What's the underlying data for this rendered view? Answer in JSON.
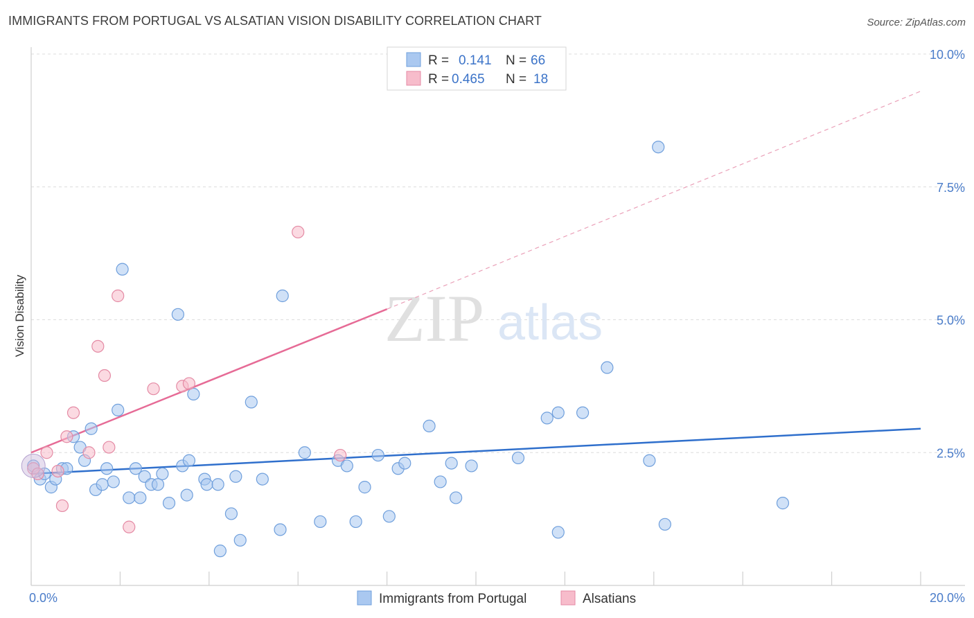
{
  "header": {
    "title": "IMMIGRANTS FROM PORTUGAL VS ALSATIAN VISION DISABILITY CORRELATION CHART",
    "source": "Source: ZipAtlas.com"
  },
  "watermark": {
    "zip": "ZIP",
    "atlas": "atlas"
  },
  "legend": {
    "r_label": "R =",
    "n_label": "N =",
    "rows": [
      {
        "r": "0.141",
        "n": "66",
        "color": "#aac8f0"
      },
      {
        "r": "0.465",
        "n": "18",
        "color": "#f7bccb"
      }
    ]
  },
  "chart_data": {
    "type": "scatter",
    "title": "IMMIGRANTS FROM PORTUGAL VS ALSATIAN VISION DISABILITY CORRELATION CHART",
    "xlabel": "",
    "ylabel": "Vision Disability",
    "xlim": [
      0,
      20
    ],
    "ylim": [
      0,
      10
    ],
    "x_tick_labels": [
      "0.0%",
      "20.0%"
    ],
    "y_ticks": [
      {
        "value": 2.5,
        "label": "2.5%"
      },
      {
        "value": 5.0,
        "label": "5.0%"
      },
      {
        "value": 7.5,
        "label": "7.5%"
      },
      {
        "value": 10.0,
        "label": "10.0%"
      }
    ],
    "grid": true,
    "legend_position": "top-center",
    "series": [
      {
        "name": "Immigrants from Portugal",
        "color": "#aac8f0",
        "stroke": "#6f9fdc",
        "trend_color": "#2f6fcc",
        "trend": {
          "x0": 0,
          "y0": 2.1,
          "x1": 20,
          "y1": 2.95
        },
        "points": [
          [
            0.05,
            2.25
          ],
          [
            0.2,
            2.0
          ],
          [
            0.3,
            2.1
          ],
          [
            0.45,
            1.85
          ],
          [
            0.55,
            2.0
          ],
          [
            0.7,
            2.2
          ],
          [
            0.8,
            2.2
          ],
          [
            0.95,
            2.8
          ],
          [
            1.1,
            2.6
          ],
          [
            1.2,
            2.35
          ],
          [
            1.35,
            2.95
          ],
          [
            1.45,
            1.8
          ],
          [
            1.6,
            1.9
          ],
          [
            1.7,
            2.2
          ],
          [
            1.85,
            1.95
          ],
          [
            1.95,
            3.3
          ],
          [
            2.05,
            5.95
          ],
          [
            2.2,
            1.65
          ],
          [
            2.35,
            2.2
          ],
          [
            2.45,
            1.65
          ],
          [
            2.55,
            2.05
          ],
          [
            2.7,
            1.9
          ],
          [
            2.85,
            1.9
          ],
          [
            2.95,
            2.1
          ],
          [
            3.1,
            1.55
          ],
          [
            3.3,
            5.1
          ],
          [
            3.4,
            2.25
          ],
          [
            3.5,
            1.7
          ],
          [
            3.55,
            2.35
          ],
          [
            3.65,
            3.6
          ],
          [
            3.9,
            2.0
          ],
          [
            3.95,
            1.9
          ],
          [
            4.2,
            1.9
          ],
          [
            4.25,
            0.65
          ],
          [
            4.5,
            1.35
          ],
          [
            4.6,
            2.05
          ],
          [
            4.7,
            0.85
          ],
          [
            4.95,
            3.45
          ],
          [
            5.2,
            2.0
          ],
          [
            5.6,
            1.05
          ],
          [
            5.65,
            5.45
          ],
          [
            6.15,
            2.5
          ],
          [
            6.5,
            1.2
          ],
          [
            6.9,
            2.35
          ],
          [
            7.1,
            2.25
          ],
          [
            7.3,
            1.2
          ],
          [
            7.5,
            1.85
          ],
          [
            7.8,
            2.45
          ],
          [
            8.05,
            1.3
          ],
          [
            8.25,
            2.2
          ],
          [
            8.4,
            2.3
          ],
          [
            8.95,
            3.0
          ],
          [
            9.2,
            1.95
          ],
          [
            9.45,
            2.3
          ],
          [
            9.55,
            1.65
          ],
          [
            9.9,
            2.25
          ],
          [
            10.95,
            2.4
          ],
          [
            11.6,
            3.15
          ],
          [
            11.85,
            3.25
          ],
          [
            11.85,
            1.0
          ],
          [
            12.4,
            3.25
          ],
          [
            12.95,
            4.1
          ],
          [
            13.9,
            2.35
          ],
          [
            14.25,
            1.15
          ],
          [
            14.1,
            8.25
          ],
          [
            16.9,
            1.55
          ]
        ]
      },
      {
        "name": "Alsatians",
        "color": "#f7bccb",
        "stroke": "#e48aa4",
        "trend_color": "#e66b96",
        "trend": {
          "x0": 0,
          "y0": 2.5,
          "x1": 8.0,
          "y1": 5.2
        },
        "trend_extension": {
          "x0": 8.0,
          "y0": 5.2,
          "x1": 20,
          "y1": 9.3
        },
        "points": [
          [
            0.05,
            2.2
          ],
          [
            0.15,
            2.1
          ],
          [
            0.35,
            2.5
          ],
          [
            0.6,
            2.15
          ],
          [
            0.7,
            1.5
          ],
          [
            0.8,
            2.8
          ],
          [
            0.95,
            3.25
          ],
          [
            1.3,
            2.5
          ],
          [
            1.5,
            4.5
          ],
          [
            1.65,
            3.95
          ],
          [
            1.75,
            2.6
          ],
          [
            1.95,
            5.45
          ],
          [
            2.2,
            1.1
          ],
          [
            2.75,
            3.7
          ],
          [
            3.4,
            3.75
          ],
          [
            3.55,
            3.8
          ],
          [
            6.0,
            6.65
          ],
          [
            6.95,
            2.45
          ]
        ]
      }
    ]
  }
}
